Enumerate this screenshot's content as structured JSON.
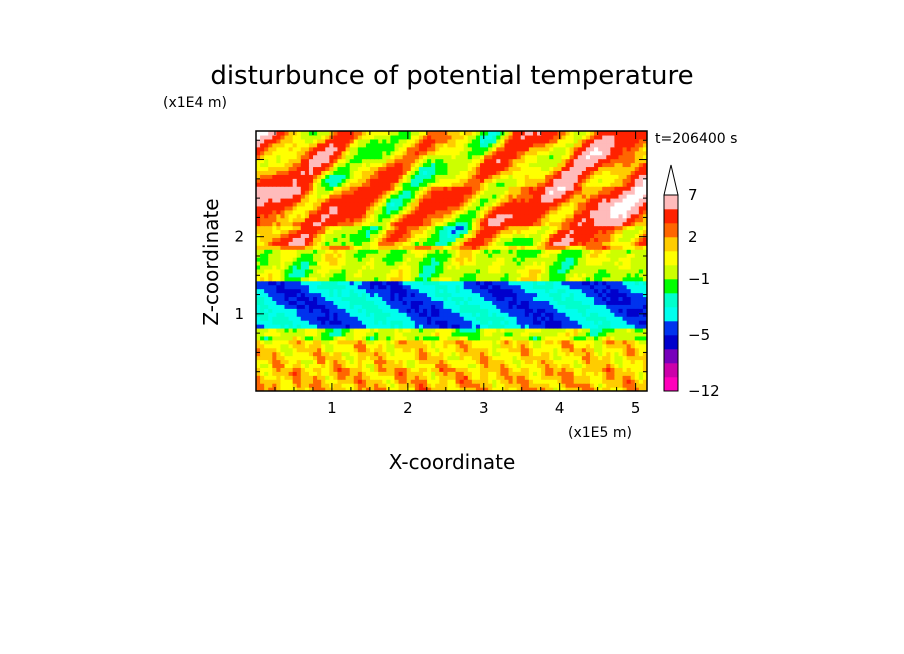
{
  "chart_data": {
    "type": "heatmap",
    "title": "disturbunce of potential temperature",
    "xlabel": "X-coordinate",
    "ylabel": "Z-coordinate",
    "x_unit": "(x1E5 m)",
    "y_unit": "(x1E4 m)",
    "time_label": "t=206400 s",
    "xlim": [
      0,
      5.15
    ],
    "ylim": [
      0,
      3.37
    ],
    "x_ticks": [
      1,
      2,
      3,
      4,
      5
    ],
    "y_ticks": [
      1,
      2
    ],
    "colorbar": {
      "labels": [
        "7",
        "2",
        "−1",
        "−5",
        "−12"
      ],
      "label_values": [
        7,
        2,
        -1,
        -5,
        -12
      ],
      "levels": [
        -12,
        -10,
        -8,
        -6,
        -5,
        -4,
        -3,
        -2,
        -1,
        0,
        1,
        2,
        3,
        5,
        7,
        9,
        11
      ],
      "colors": [
        "#ff00bb",
        "#cc00aa",
        "#7700bb",
        "#0000cc",
        "#0033ee",
        "#00ffee",
        "#00ffcc",
        "#00ff00",
        "#ccff00",
        "#ffff00",
        "#ffcc00",
        "#ff6600",
        "#ff2200",
        "#ffbbbb",
        "#ffffff"
      ]
    },
    "bands": [
      {
        "z": [
          0.0,
          0.3
        ],
        "value": 1.5
      },
      {
        "z": [
          0.3,
          0.65
        ],
        "value": 1.0
      },
      {
        "z": [
          0.65,
          0.8
        ],
        "value": -0.5
      },
      {
        "z": [
          0.8,
          1.45
        ],
        "value": -4.0
      },
      {
        "z": [
          1.45,
          1.85
        ],
        "value": -0.5
      },
      {
        "z": [
          1.85,
          2.15
        ],
        "value": 1.5
      },
      {
        "z": [
          2.15,
          2.65
        ],
        "value": 3.0
      },
      {
        "z": [
          2.65,
          3.37
        ],
        "value": 2.0
      }
    ]
  }
}
